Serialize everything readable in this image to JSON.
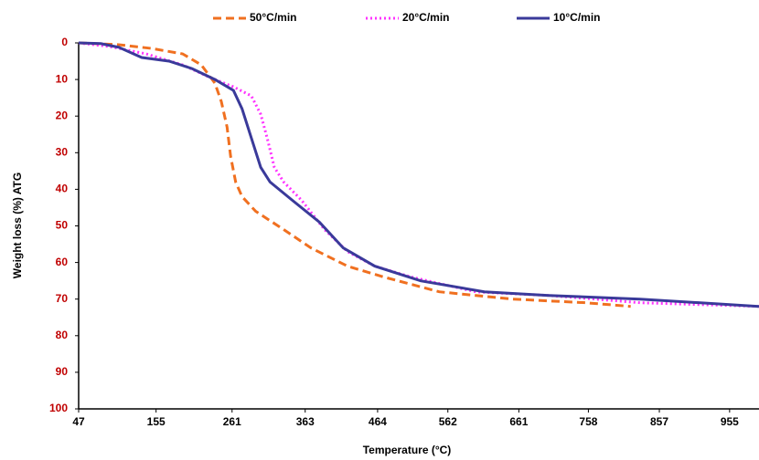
{
  "chart_data": {
    "type": "line",
    "x_label": "Temperature (°C)",
    "y_label": "Weight loss (%) ATG",
    "xlim": [
      47,
      996
    ],
    "xticks": [
      47,
      155,
      261,
      363,
      464,
      562,
      661,
      758,
      857,
      955
    ],
    "ylim": [
      0,
      100
    ],
    "yticks": [
      0,
      10,
      20,
      30,
      40,
      50,
      60,
      70,
      80,
      90,
      100
    ],
    "y_inverted": true,
    "y_tick_color": "#c00000",
    "grid": false,
    "legend": "top",
    "series": [
      {
        "name": "50°C/min",
        "color": "#f07020",
        "style": "dashed",
        "x": [
          47,
          103,
          148,
          192,
          218,
          237,
          246,
          254,
          259,
          266,
          275,
          294,
          333,
          371,
          422,
          473,
          550,
          652,
          754,
          817
        ],
        "values": [
          0,
          0.5,
          1.5,
          3,
          6,
          11,
          16,
          23,
          31,
          38,
          42,
          46,
          51,
          56,
          61,
          64,
          68,
          70,
          71,
          72
        ]
      },
      {
        "name": "20°C/min",
        "color": "#ff33ff",
        "style": "dotted",
        "x": [
          47,
          90,
          141,
          192,
          231,
          263,
          288,
          301,
          310,
          320,
          333,
          358,
          390,
          422,
          460,
          511,
          601,
          703,
          830,
          996
        ],
        "values": [
          0,
          1,
          3,
          6,
          9.5,
          12,
          14.5,
          19.5,
          26,
          34,
          38,
          43,
          51,
          57,
          61,
          64,
          68,
          69,
          71,
          72
        ]
      },
      {
        "name": "10°C/min",
        "color": "#3a3a9a",
        "style": "solid",
        "x": [
          47,
          78,
          103,
          135,
          173,
          205,
          237,
          263,
          275,
          288,
          301,
          314,
          345,
          383,
          416,
          460,
          524,
          613,
          703,
          830,
          996
        ],
        "values": [
          0,
          0.2,
          1.2,
          4,
          5,
          7,
          10,
          13,
          18,
          26,
          34,
          38,
          43,
          49,
          56,
          61,
          65,
          68,
          69,
          70,
          72
        ]
      }
    ]
  }
}
